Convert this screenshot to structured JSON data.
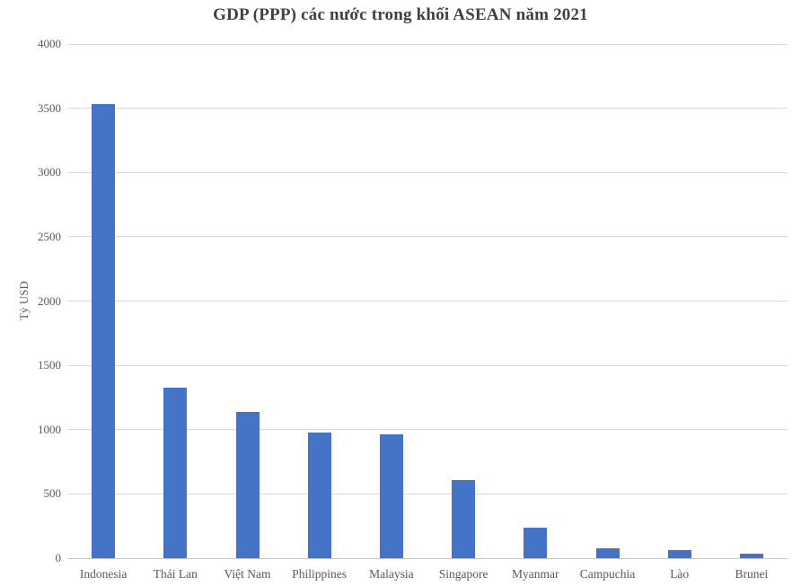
{
  "chart_data": {
    "type": "bar",
    "title": "GDP (PPP) các nước trong khối ASEAN năm 2021",
    "ylabel": "Tỷ USD",
    "xlabel": "",
    "categories": [
      "Indonesia",
      "Thái Lan",
      "Việt Nam",
      "Philippines",
      "Malaysia",
      "Singapore",
      "Myanmar",
      "Campuchia",
      "Lào",
      "Brunei"
    ],
    "values": [
      3530,
      1325,
      1135,
      980,
      965,
      610,
      235,
      80,
      62,
      35
    ],
    "ylim": [
      0,
      4000
    ],
    "yticks": [
      0,
      500,
      1000,
      1500,
      2000,
      2500,
      3000,
      3500,
      4000
    ],
    "grid": true,
    "legend": "none",
    "colors": {
      "bar": "#4472c4",
      "gridline": "#d9d9d9",
      "axis_line": "#c6c6c6",
      "title_text": "#404040",
      "axis_text": "#595959",
      "background": "#ffffff"
    }
  }
}
